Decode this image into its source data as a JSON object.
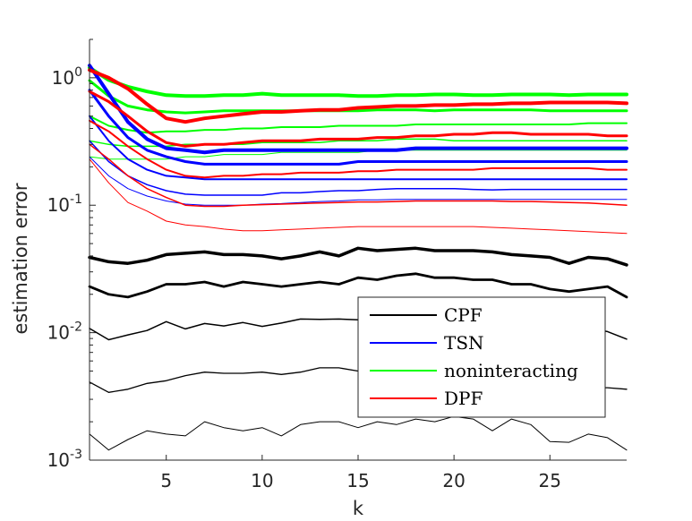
{
  "chart_data": {
    "type": "line",
    "title": "",
    "xlabel": "k",
    "ylabel": "estimation error",
    "xlim": [
      1,
      29
    ],
    "ylim": [
      0.001,
      2
    ],
    "yscale": "log",
    "grid": false,
    "legend_position": "bottom-right",
    "x_ticks": [
      5,
      10,
      15,
      20,
      25
    ],
    "x_tick_labels": [
      "5",
      "10",
      "15",
      "20",
      "25"
    ],
    "y_ticks": [
      0.001,
      0.01,
      0.1,
      1
    ],
    "y_tick_labels": [
      {
        "base": "10",
        "exp": "-3"
      },
      {
        "base": "10",
        "exp": "-2"
      },
      {
        "base": "10",
        "exp": "-1"
      },
      {
        "base": "10",
        "exp": "0"
      }
    ],
    "legend": [
      {
        "name": "CPF",
        "color": "#000000"
      },
      {
        "name": "TSN",
        "color": "#0000ff"
      },
      {
        "name": "noninteracting",
        "color": "#00ff00"
      },
      {
        "name": "DPF",
        "color": "#ff0000"
      }
    ],
    "x": [
      1,
      2,
      3,
      4,
      5,
      6,
      7,
      8,
      9,
      10,
      11,
      12,
      13,
      14,
      15,
      16,
      17,
      18,
      19,
      20,
      21,
      22,
      23,
      24,
      25,
      26,
      27,
      28,
      29
    ],
    "series": [
      {
        "group": "CPF",
        "color": "#000000",
        "width": 3.5,
        "values": [
          0.039,
          0.036,
          0.035,
          0.037,
          0.041,
          0.042,
          0.043,
          0.041,
          0.041,
          0.04,
          0.038,
          0.04,
          0.043,
          0.04,
          0.046,
          0.044,
          0.045,
          0.046,
          0.044,
          0.044,
          0.044,
          0.043,
          0.041,
          0.04,
          0.039,
          0.035,
          0.039,
          0.038,
          0.034
        ]
      },
      {
        "group": "CPF",
        "color": "#000000",
        "width": 2.8,
        "values": [
          0.023,
          0.02,
          0.019,
          0.021,
          0.024,
          0.024,
          0.025,
          0.023,
          0.025,
          0.024,
          0.023,
          0.024,
          0.025,
          0.024,
          0.027,
          0.026,
          0.028,
          0.029,
          0.027,
          0.027,
          0.026,
          0.026,
          0.024,
          0.024,
          0.022,
          0.021,
          0.022,
          0.023,
          0.019
        ]
      },
      {
        "group": "CPF",
        "color": "#000000",
        "width": 1.5,
        "values": [
          0.0108,
          0.0088,
          0.0096,
          0.0104,
          0.0122,
          0.0107,
          0.0118,
          0.0113,
          0.012,
          0.0112,
          0.0119,
          0.0128,
          0.0127,
          0.0128,
          0.0126,
          0.0125,
          0.0122,
          0.0124,
          0.0123,
          0.0122,
          0.0121,
          0.012,
          0.0118,
          0.0116,
          0.0114,
          0.0112,
          0.0108,
          0.0102,
          0.0089
        ]
      },
      {
        "group": "CPF",
        "color": "#000000",
        "width": 1.3,
        "values": [
          0.0041,
          0.0034,
          0.0036,
          0.004,
          0.0042,
          0.0046,
          0.0049,
          0.0048,
          0.0048,
          0.0049,
          0.0047,
          0.0049,
          0.0053,
          0.0053,
          0.005,
          0.0048,
          0.0047,
          0.0046,
          0.0045,
          0.0044,
          0.0043,
          0.0042,
          0.0041,
          0.004,
          0.0039,
          0.0038,
          0.0037,
          0.0037,
          0.0036
        ]
      },
      {
        "group": "CPF",
        "color": "#000000",
        "width": 1.0,
        "values": [
          0.0016,
          0.0012,
          0.00145,
          0.0017,
          0.0016,
          0.00155,
          0.002,
          0.0018,
          0.0017,
          0.0018,
          0.00155,
          0.0019,
          0.002,
          0.002,
          0.0018,
          0.002,
          0.0019,
          0.0021,
          0.002,
          0.0022,
          0.0021,
          0.0017,
          0.0021,
          0.0019,
          0.0014,
          0.00138,
          0.0016,
          0.0015,
          0.0012
        ]
      },
      {
        "group": "noninteracting",
        "color": "#00ff00",
        "width": 4.0,
        "values": [
          1.2,
          0.96,
          0.85,
          0.78,
          0.73,
          0.72,
          0.72,
          0.73,
          0.73,
          0.75,
          0.73,
          0.73,
          0.73,
          0.73,
          0.72,
          0.72,
          0.73,
          0.73,
          0.74,
          0.74,
          0.73,
          0.73,
          0.74,
          0.74,
          0.74,
          0.73,
          0.74,
          0.74,
          0.74
        ]
      },
      {
        "group": "noninteracting",
        "color": "#00ff00",
        "width": 3.0,
        "values": [
          0.95,
          0.72,
          0.6,
          0.56,
          0.54,
          0.53,
          0.54,
          0.55,
          0.55,
          0.55,
          0.55,
          0.55,
          0.55,
          0.55,
          0.55,
          0.56,
          0.56,
          0.56,
          0.55,
          0.56,
          0.56,
          0.56,
          0.56,
          0.56,
          0.55,
          0.55,
          0.55,
          0.55,
          0.55
        ]
      },
      {
        "group": "noninteracting",
        "color": "#00ff00",
        "width": 2.0,
        "values": [
          0.5,
          0.42,
          0.39,
          0.37,
          0.38,
          0.38,
          0.39,
          0.39,
          0.4,
          0.4,
          0.41,
          0.41,
          0.41,
          0.42,
          0.42,
          0.42,
          0.42,
          0.43,
          0.43,
          0.43,
          0.43,
          0.43,
          0.43,
          0.43,
          0.43,
          0.43,
          0.44,
          0.44,
          0.44
        ]
      },
      {
        "group": "noninteracting",
        "color": "#00ff00",
        "width": 1.5,
        "values": [
          0.32,
          0.3,
          0.29,
          0.29,
          0.29,
          0.3,
          0.3,
          0.3,
          0.3,
          0.31,
          0.31,
          0.31,
          0.31,
          0.32,
          0.32,
          0.32,
          0.33,
          0.33,
          0.33,
          0.32,
          0.32,
          0.32,
          0.32,
          0.32,
          0.32,
          0.32,
          0.32,
          0.32,
          0.32
        ]
      },
      {
        "group": "noninteracting",
        "color": "#00ff00",
        "width": 1.0,
        "values": [
          0.24,
          0.23,
          0.23,
          0.23,
          0.23,
          0.24,
          0.24,
          0.25,
          0.25,
          0.25,
          0.26,
          0.26,
          0.26,
          0.26,
          0.26,
          0.27,
          0.27,
          0.27,
          0.27,
          0.27,
          0.27,
          0.27,
          0.27,
          0.27,
          0.27,
          0.27,
          0.27,
          0.27,
          0.27
        ]
      },
      {
        "group": "TSN",
        "color": "#0000ff",
        "width": 4.0,
        "values": [
          1.25,
          0.75,
          0.45,
          0.33,
          0.28,
          0.27,
          0.26,
          0.27,
          0.27,
          0.27,
          0.27,
          0.27,
          0.27,
          0.27,
          0.27,
          0.27,
          0.27,
          0.28,
          0.28,
          0.28,
          0.28,
          0.28,
          0.28,
          0.28,
          0.28,
          0.28,
          0.28,
          0.28,
          0.28
        ]
      },
      {
        "group": "TSN",
        "color": "#0000ff",
        "width": 3.0,
        "values": [
          0.8,
          0.5,
          0.34,
          0.27,
          0.24,
          0.22,
          0.21,
          0.21,
          0.21,
          0.21,
          0.21,
          0.21,
          0.21,
          0.21,
          0.22,
          0.22,
          0.22,
          0.22,
          0.22,
          0.22,
          0.22,
          0.22,
          0.22,
          0.22,
          0.22,
          0.22,
          0.22,
          0.22,
          0.22
        ]
      },
      {
        "group": "TSN",
        "color": "#0000ff",
        "width": 2.0,
        "values": [
          0.5,
          0.32,
          0.23,
          0.19,
          0.17,
          0.165,
          0.16,
          0.16,
          0.16,
          0.16,
          0.16,
          0.16,
          0.16,
          0.16,
          0.16,
          0.16,
          0.16,
          0.16,
          0.16,
          0.16,
          0.16,
          0.16,
          0.16,
          0.16,
          0.16,
          0.16,
          0.16,
          0.16,
          0.16
        ]
      },
      {
        "group": "TSN",
        "color": "#0000ff",
        "width": 1.5,
        "values": [
          0.32,
          0.22,
          0.17,
          0.145,
          0.13,
          0.122,
          0.12,
          0.12,
          0.12,
          0.12,
          0.125,
          0.125,
          0.128,
          0.13,
          0.13,
          0.133,
          0.135,
          0.135,
          0.135,
          0.135,
          0.133,
          0.132,
          0.133,
          0.133,
          0.133,
          0.133,
          0.133,
          0.133,
          0.133
        ]
      },
      {
        "group": "TSN",
        "color": "#0000ff",
        "width": 1.0,
        "values": [
          0.24,
          0.17,
          0.135,
          0.118,
          0.108,
          0.102,
          0.1,
          0.1,
          0.1,
          0.102,
          0.103,
          0.105,
          0.107,
          0.108,
          0.11,
          0.11,
          0.111,
          0.111,
          0.111,
          0.111,
          0.111,
          0.111,
          0.111,
          0.111,
          0.111,
          0.111,
          0.111,
          0.111,
          0.111
        ]
      },
      {
        "group": "DPF",
        "color": "#ff0000",
        "width": 4.0,
        "values": [
          1.15,
          1.0,
          0.82,
          0.62,
          0.48,
          0.45,
          0.48,
          0.5,
          0.52,
          0.54,
          0.54,
          0.55,
          0.56,
          0.56,
          0.58,
          0.59,
          0.6,
          0.6,
          0.61,
          0.61,
          0.62,
          0.62,
          0.63,
          0.63,
          0.64,
          0.64,
          0.64,
          0.64,
          0.63
        ]
      },
      {
        "group": "DPF",
        "color": "#ff0000",
        "width": 3.0,
        "values": [
          0.78,
          0.65,
          0.5,
          0.38,
          0.31,
          0.29,
          0.3,
          0.3,
          0.31,
          0.32,
          0.32,
          0.32,
          0.33,
          0.33,
          0.33,
          0.34,
          0.34,
          0.35,
          0.35,
          0.36,
          0.36,
          0.37,
          0.37,
          0.36,
          0.36,
          0.36,
          0.36,
          0.35,
          0.35
        ]
      },
      {
        "group": "DPF",
        "color": "#ff0000",
        "width": 2.0,
        "values": [
          0.46,
          0.38,
          0.29,
          0.23,
          0.19,
          0.17,
          0.165,
          0.17,
          0.17,
          0.175,
          0.175,
          0.18,
          0.18,
          0.18,
          0.185,
          0.185,
          0.19,
          0.19,
          0.19,
          0.19,
          0.19,
          0.195,
          0.195,
          0.195,
          0.195,
          0.195,
          0.195,
          0.19,
          0.19
        ]
      },
      {
        "group": "DPF",
        "color": "#ff0000",
        "width": 1.5,
        "values": [
          0.3,
          0.23,
          0.17,
          0.135,
          0.115,
          0.1,
          0.098,
          0.098,
          0.1,
          0.101,
          0.102,
          0.103,
          0.104,
          0.105,
          0.106,
          0.106,
          0.107,
          0.108,
          0.108,
          0.108,
          0.108,
          0.108,
          0.107,
          0.107,
          0.106,
          0.105,
          0.104,
          0.102,
          0.1
        ]
      },
      {
        "group": "DPF",
        "color": "#ff0000",
        "width": 1.0,
        "values": [
          0.23,
          0.15,
          0.105,
          0.09,
          0.075,
          0.07,
          0.068,
          0.065,
          0.063,
          0.063,
          0.064,
          0.065,
          0.066,
          0.067,
          0.068,
          0.068,
          0.068,
          0.068,
          0.068,
          0.068,
          0.068,
          0.067,
          0.066,
          0.065,
          0.064,
          0.063,
          0.062,
          0.061,
          0.06
        ]
      }
    ]
  }
}
